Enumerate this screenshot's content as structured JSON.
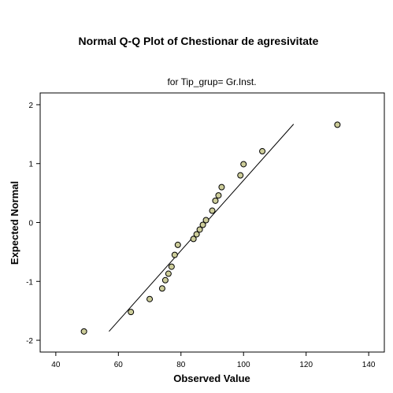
{
  "colors": {
    "background": "#ffffff",
    "axis": "#000000",
    "point_fill": "#cccc99",
    "point_stroke": "#000000",
    "reference_line": "#000000"
  },
  "chart_data": {
    "type": "scatter",
    "title": "Normal Q-Q Plot of Chestionar de agresivitate",
    "subtitle": "for Tip_grup= Gr.Inst.",
    "xlabel": "Observed Value",
    "ylabel": "Expected Normal",
    "xlim": [
      35,
      145
    ],
    "ylim": [
      -2.2,
      2.2
    ],
    "x_ticks": [
      40,
      60,
      80,
      100,
      120,
      140
    ],
    "y_ticks": [
      -2,
      -1,
      0,
      1,
      2
    ],
    "x_tick_labels": [
      "40",
      "60",
      "80",
      "100",
      "120",
      "140"
    ],
    "y_tick_labels": [
      "-2",
      "-1",
      "0",
      "1",
      "2"
    ],
    "grid": false,
    "legend": "none",
    "reference_line": {
      "x": [
        57,
        116
      ],
      "y": [
        -1.85,
        1.67
      ]
    },
    "points": [
      {
        "x": 49,
        "y": -1.85
      },
      {
        "x": 64,
        "y": -1.52
      },
      {
        "x": 70,
        "y": -1.3
      },
      {
        "x": 74,
        "y": -1.12
      },
      {
        "x": 75,
        "y": -0.98
      },
      {
        "x": 76,
        "y": -0.87
      },
      {
        "x": 77,
        "y": -0.75
      },
      {
        "x": 78,
        "y": -0.55
      },
      {
        "x": 79,
        "y": -0.38
      },
      {
        "x": 84,
        "y": -0.28
      },
      {
        "x": 85,
        "y": -0.2
      },
      {
        "x": 86,
        "y": -0.12
      },
      {
        "x": 87,
        "y": -0.04
      },
      {
        "x": 88,
        "y": 0.04
      },
      {
        "x": 90,
        "y": 0.2
      },
      {
        "x": 91,
        "y": 0.37
      },
      {
        "x": 92,
        "y": 0.46
      },
      {
        "x": 93,
        "y": 0.6
      },
      {
        "x": 99,
        "y": 0.8
      },
      {
        "x": 100,
        "y": 0.99
      },
      {
        "x": 106,
        "y": 1.21
      },
      {
        "x": 130,
        "y": 1.66
      }
    ]
  }
}
